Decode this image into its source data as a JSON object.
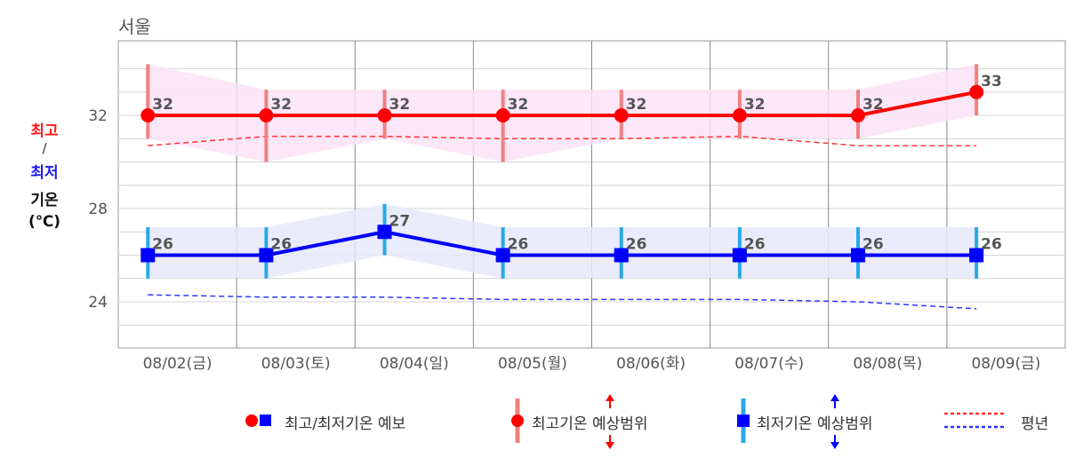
{
  "city": "서울",
  "ylabel": {
    "max": "최고",
    "separator": "/",
    "min": "최저",
    "word": "기온",
    "unit": "(℃)"
  },
  "legend": {
    "forecast": "최고/최저기온 예보",
    "max_range": "최고기온 예상범위",
    "min_range": "최저기온 예상범위",
    "normal": "평년"
  },
  "colors": {
    "max": "#ff0000",
    "min": "#0000ff",
    "max_range_bar": "#f08080",
    "min_range_bar": "#29a8e8",
    "max_band": "#fbe3f7",
    "min_band": "#e6e9fb"
  },
  "chart_data": {
    "type": "line",
    "categories": [
      "08/02(금)",
      "08/03(토)",
      "08/04(일)",
      "08/05(월)",
      "08/06(화)",
      "08/07(수)",
      "08/08(목)",
      "08/09(금)"
    ],
    "ylim": [
      22,
      35
    ],
    "yticks": [
      24,
      28,
      32
    ],
    "grid": true,
    "legend_position": "bottom",
    "series": [
      {
        "name": "최고기온",
        "values": [
          32,
          32,
          32,
          32,
          32,
          32,
          32,
          33
        ],
        "range_high": [
          34.2,
          33.1,
          33.1,
          33.1,
          33.1,
          33.1,
          33.1,
          34.2
        ],
        "range_low": [
          31.0,
          30.0,
          31.0,
          30.0,
          31.0,
          31.0,
          31.0,
          32.0
        ],
        "normal": [
          30.7,
          31.1,
          31.1,
          31.0,
          31.0,
          31.1,
          30.7,
          30.7
        ]
      },
      {
        "name": "최저기온",
        "values": [
          26,
          26,
          27,
          26,
          26,
          26,
          26,
          26
        ],
        "range_high": [
          27.2,
          27.2,
          28.2,
          27.2,
          27.2,
          27.2,
          27.2,
          27.2
        ],
        "range_low": [
          25.0,
          25.0,
          26.0,
          25.0,
          25.0,
          25.0,
          25.0,
          25.0
        ],
        "normal": [
          24.3,
          24.2,
          24.2,
          24.1,
          24.1,
          24.1,
          24.0,
          23.7
        ]
      }
    ]
  }
}
